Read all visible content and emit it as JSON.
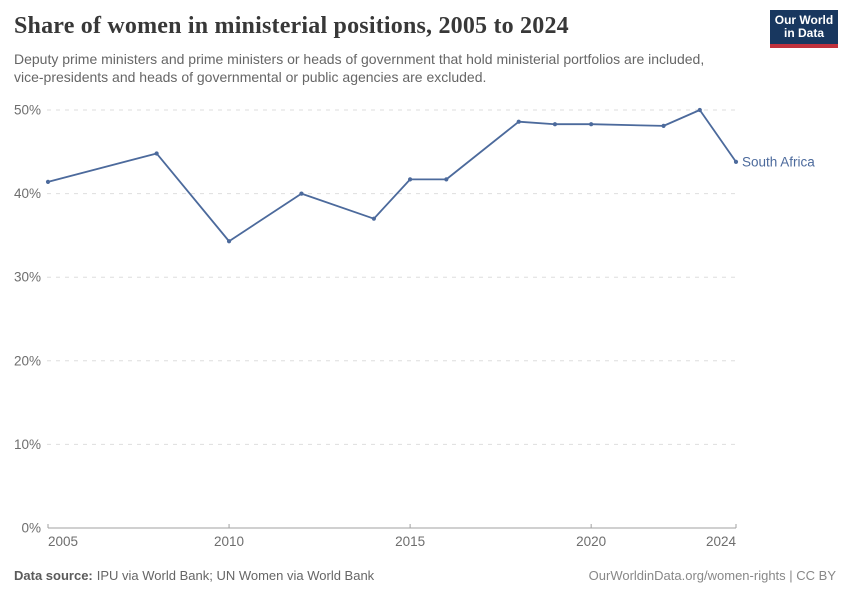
{
  "logo": {
    "line1": "Our World",
    "line2": "in Data",
    "bg_color": "#18375f",
    "accent_color": "#c0313c"
  },
  "chart_data": {
    "type": "line",
    "title": "Share of women in ministerial positions, 2005 to 2024",
    "subtitle": "Deputy prime ministers and prime ministers or heads of government that hold ministerial portfolios are included, vice-presidents and heads of governmental or public agencies are excluded.",
    "xlabel": "",
    "ylabel": "",
    "xlim": [
      2005,
      2024
    ],
    "ylim": [
      0,
      50
    ],
    "x_ticks": [
      2005,
      2010,
      2015,
      2020,
      2024
    ],
    "y_ticks": [
      0,
      10,
      20,
      30,
      40,
      50
    ],
    "y_tick_suffix": "%",
    "grid": "horizontal-dashed",
    "legend_position": "end-of-line-label",
    "series": [
      {
        "name": "South Africa",
        "color": "#4c6a9c",
        "data": [
          [
            2005,
            41.4
          ],
          [
            2008,
            44.8
          ],
          [
            2010,
            34.3
          ],
          [
            2012,
            40.0
          ],
          [
            2014,
            37.0
          ],
          [
            2015,
            41.7
          ],
          [
            2016,
            41.7
          ],
          [
            2018,
            48.6
          ],
          [
            2019,
            48.3
          ],
          [
            2020,
            48.3
          ],
          [
            2022,
            48.1
          ],
          [
            2023,
            50.0
          ],
          [
            2024,
            43.8
          ]
        ]
      }
    ]
  },
  "footer": {
    "source_label": "Data source:",
    "source_value": "IPU via World Bank; UN Women via World Bank",
    "attribution": "OurWorldinData.org/women-rights | CC BY"
  }
}
